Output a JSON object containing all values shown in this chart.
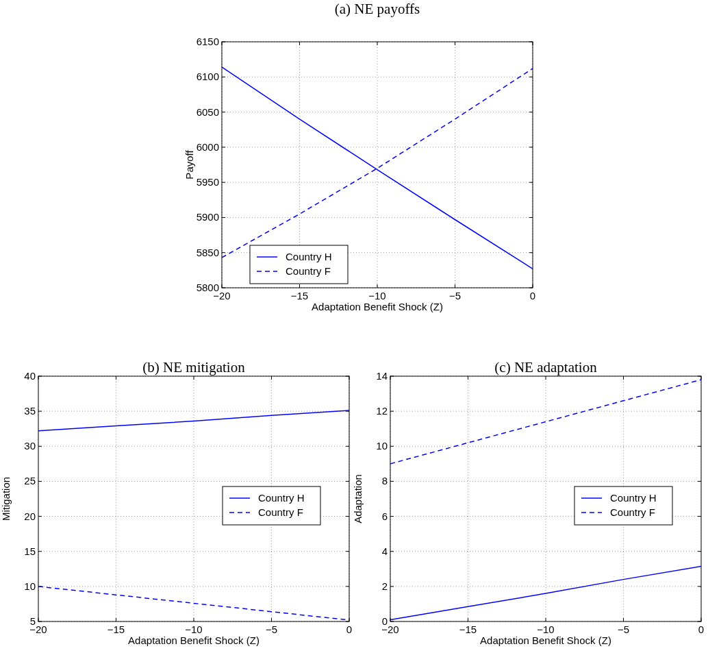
{
  "chart_data": [
    {
      "type": "line",
      "title": "(a) NE payoffs",
      "xlabel": "Adaptation Benefit Shock (Z)",
      "ylabel": "Payoff",
      "x": [
        -20,
        -15,
        -10,
        -5,
        0
      ],
      "xlim": [
        -20,
        0
      ],
      "xticks": [
        {
          "value": -20,
          "label": "−20"
        },
        {
          "value": -15,
          "label": "−15"
        },
        {
          "value": -10,
          "label": "−10"
        },
        {
          "value": -5,
          "label": "−5"
        },
        {
          "value": 0,
          "label": "0"
        }
      ],
      "ylim": [
        5800,
        6150
      ],
      "yticks": [
        5800,
        5850,
        5900,
        5950,
        6000,
        6050,
        6100,
        6150
      ],
      "grid": true,
      "legend": "bottom left",
      "series": [
        {
          "name": "Country H",
          "color": "#0000ff",
          "line_style": "solid",
          "values": [
            6114,
            6040,
            5968,
            5897,
            5827
          ]
        },
        {
          "name": "Country F",
          "color": "#0000ff",
          "line_style": "dashed",
          "values": [
            5843,
            5905,
            5970,
            6040,
            6112
          ]
        }
      ]
    },
    {
      "type": "line",
      "title": "(b) NE mitigation",
      "xlabel": "Adaptation Benefit Shock (Z)",
      "ylabel": "Mitigation",
      "x": [
        -20,
        -15,
        -10,
        -5,
        0
      ],
      "xlim": [
        -20,
        0
      ],
      "xticks": [
        {
          "value": -20,
          "label": "−20"
        },
        {
          "value": -15,
          "label": "−15"
        },
        {
          "value": -10,
          "label": "−10"
        },
        {
          "value": -5,
          "label": "−5"
        },
        {
          "value": 0,
          "label": "0"
        }
      ],
      "ylim": [
        5,
        40
      ],
      "yticks": [
        5,
        10,
        15,
        20,
        25,
        30,
        35,
        40
      ],
      "grid": true,
      "legend": "right",
      "series": [
        {
          "name": "Country H",
          "color": "#0000ff",
          "line_style": "solid",
          "values": [
            32.2,
            32.9,
            33.6,
            34.4,
            35.1
          ]
        },
        {
          "name": "Country F",
          "color": "#0000ff",
          "line_style": "dashed",
          "values": [
            10.0,
            8.8,
            7.6,
            6.4,
            5.2
          ]
        }
      ]
    },
    {
      "type": "line",
      "title": "(c) NE adaptation",
      "xlabel": "Adaptation Benefit Shock (Z)",
      "ylabel": "Adaptation",
      "x": [
        -20,
        -15,
        -10,
        -5,
        0
      ],
      "xlim": [
        -20,
        0
      ],
      "xticks": [
        {
          "value": -20,
          "label": "−20"
        },
        {
          "value": -15,
          "label": "−15"
        },
        {
          "value": -10,
          "label": "−10"
        },
        {
          "value": -5,
          "label": "−5"
        },
        {
          "value": 0,
          "label": "0"
        }
      ],
      "ylim": [
        0,
        14
      ],
      "yticks": [
        0,
        2,
        4,
        6,
        8,
        10,
        12,
        14
      ],
      "grid": true,
      "legend": "right",
      "series": [
        {
          "name": "Country H",
          "color": "#0000ff",
          "line_style": "solid",
          "values": [
            0.1,
            0.85,
            1.6,
            2.4,
            3.15
          ]
        },
        {
          "name": "Country F",
          "color": "#0000ff",
          "line_style": "dashed",
          "values": [
            9.0,
            10.2,
            11.4,
            12.6,
            13.8
          ]
        }
      ]
    }
  ]
}
